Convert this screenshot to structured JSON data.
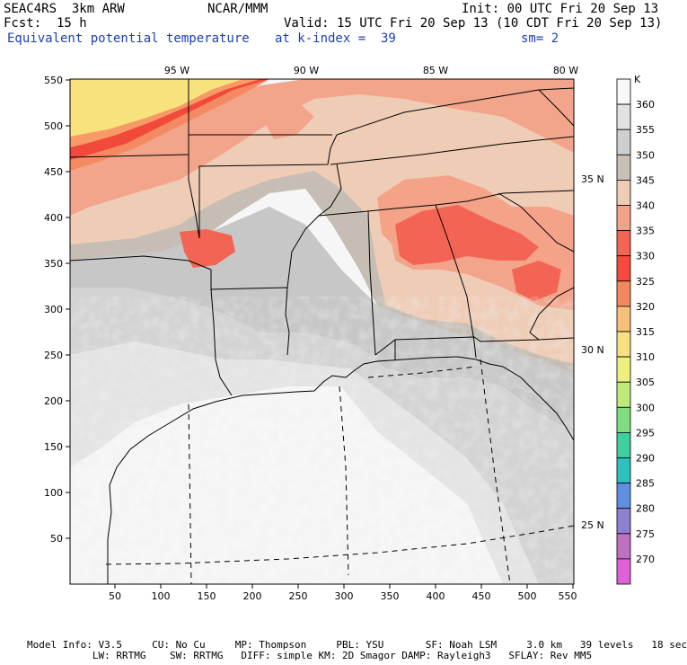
{
  "header": {
    "model": "SEAC4RS  3km ARW",
    "org": "NCAR/MMM",
    "init": "Init: 00 UTC Fri 20 Sep 13",
    "fcst": "Fcst:  15 h",
    "valid": "Valid: 15 UTC Fri 20 Sep 13 (10 CDT Fri 20 Sep 13)",
    "field": "Equivalent potential temperature",
    "level": "at k-index =  39",
    "smooth": "sm= 2"
  },
  "map": {
    "x_ticks": [
      "50",
      "100",
      "150",
      "200",
      "250",
      "300",
      "350",
      "400",
      "450",
      "500",
      "550"
    ],
    "y_ticks": [
      "550",
      "500",
      "450",
      "400",
      "350",
      "300",
      "250",
      "200",
      "150",
      "100",
      "50"
    ],
    "lon_labels": [
      "95 W",
      "90 W",
      "85 W",
      "80 W"
    ],
    "lat_labels": [
      "35 N",
      "30 N",
      "25 N"
    ]
  },
  "colorbar": {
    "unit": "K",
    "levels": [
      "360",
      "355",
      "350",
      "345",
      "340",
      "335",
      "330",
      "325",
      "320",
      "315",
      "310",
      "305",
      "300",
      "295",
      "290",
      "285",
      "280",
      "275",
      "270"
    ],
    "colors": [
      "#f8f8f8",
      "#e2e2e2",
      "#cfcfcf",
      "#c8bfb6",
      "#efccb6",
      "#f4a388",
      "#f46454",
      "#f74a3c",
      "#f2885c",
      "#f7c07a",
      "#f7e07e",
      "#eef07e",
      "#bfea7a",
      "#7fdc7f",
      "#3fd0a0",
      "#2fc0c0",
      "#5f8fe0",
      "#8f7fd0",
      "#c070c0",
      "#e060d8"
    ]
  },
  "footer": {
    "line1": "Model Info: V3.5     CU: No Cu     MP: Thompson     PBL: YSU       SF: Noah LSM     3.0 km   39 levels   18 sec",
    "line2": "           LW: RRTMG    SW: RRTMG   DIFF: simple KM: 2D Smagor DAMP: Rayleigh3   SFLAY: Rev MM5"
  }
}
